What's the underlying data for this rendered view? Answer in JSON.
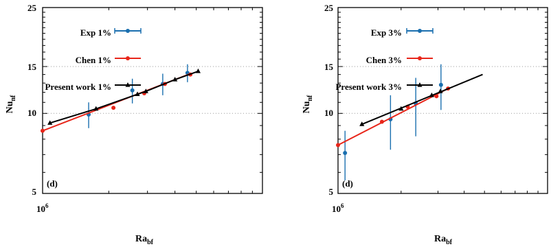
{
  "colors": {
    "exp": "#1a6faf",
    "chen": "#e8261a",
    "present": "#000000"
  },
  "chart_data": [
    {
      "type": "line",
      "panel_label": "(d)",
      "xlabel": "Ra_bf",
      "ylabel": "Nu_nf",
      "log_x": true,
      "log_y": true,
      "xlim": [
        1000000,
        10000000
      ],
      "ylim": [
        5,
        25
      ],
      "yticks": [
        5,
        10,
        15,
        25
      ],
      "xticks": [
        1000000
      ],
      "xtick_labels": [
        "10^6"
      ],
      "grid": "horizontal dotted at y-ticks",
      "legend_position": "top-left",
      "series": [
        {
          "name": "Exp 1%",
          "style": "errorbar",
          "color_key": "exp",
          "points": [
            {
              "x": 1620000,
              "y": 9.9,
              "err": 1.1
            },
            {
              "x": 2560000,
              "y": 12.2,
              "err": 1.3
            },
            {
              "x": 3520000,
              "y": 12.9,
              "err": 1.2
            },
            {
              "x": 4560000,
              "y": 14.2,
              "err": 1.1
            }
          ]
        },
        {
          "name": "Chen  1%",
          "style": "line-marker",
          "color_key": "chen",
          "points": [
            {
              "x": 1000000,
              "y": 8.6
            },
            {
              "x": 2100000,
              "y": 10.5
            },
            {
              "x": 2900000,
              "y": 11.9
            },
            {
              "x": 3600000,
              "y": 12.9
            },
            {
              "x": 4700000,
              "y": 14.0
            }
          ],
          "line_points": [
            {
              "x": 1000000,
              "y": 8.6
            },
            {
              "x": 4700000,
              "y": 14.1
            }
          ]
        },
        {
          "name": "Present work 1%",
          "style": "line-marker",
          "color_key": "present",
          "points": [
            {
              "x": 1080000,
              "y": 9.2
            },
            {
              "x": 1750000,
              "y": 10.4
            },
            {
              "x": 2700000,
              "y": 11.8
            },
            {
              "x": 2950000,
              "y": 12.1
            },
            {
              "x": 4000000,
              "y": 13.4
            },
            {
              "x": 5100000,
              "y": 14.4
            }
          ]
        }
      ]
    },
    {
      "type": "line",
      "panel_label": "(d)",
      "xlabel": "Ra_bf",
      "ylabel": "Nu_nf",
      "log_x": true,
      "log_y": true,
      "xlim": [
        1000000,
        10000000
      ],
      "ylim": [
        5,
        25
      ],
      "yticks": [
        5,
        10,
        15,
        25
      ],
      "xticks": [
        1000000
      ],
      "xtick_labels": [
        "10^6"
      ],
      "grid": "horizontal dotted at y-ticks",
      "legend_position": "top-left",
      "series": [
        {
          "name": "Exp 3%",
          "style": "errorbar",
          "color_key": "exp",
          "points": [
            {
              "x": 1080000,
              "y": 7.1,
              "err": 1.5
            },
            {
              "x": 1780000,
              "y": 9.5,
              "err": 2.2
            },
            {
              "x": 2350000,
              "y": 10.9,
              "err": 2.7
            },
            {
              "x": 3100000,
              "y": 12.8,
              "err": 2.5
            }
          ]
        },
        {
          "name": "Chen  3%",
          "style": "line-marker",
          "color_key": "chen",
          "points": [
            {
              "x": 1000000,
              "y": 7.6
            },
            {
              "x": 1620000,
              "y": 9.3
            },
            {
              "x": 2150000,
              "y": 10.6
            },
            {
              "x": 2950000,
              "y": 11.6
            },
            {
              "x": 3350000,
              "y": 12.4
            }
          ],
          "line_points": [
            {
              "x": 1000000,
              "y": 7.6
            },
            {
              "x": 3350000,
              "y": 12.4
            }
          ]
        },
        {
          "name": "Present work 3%",
          "style": "line-marker",
          "color_key": "present",
          "points": [
            {
              "x": 1300000,
              "y": 9.1
            },
            {
              "x": 2000000,
              "y": 10.4
            },
            {
              "x": 2800000,
              "y": 11.7
            },
            {
              "x": 3080000,
              "y": 12.1
            }
          ],
          "line_points": [
            {
              "x": 1300000,
              "y": 9.1
            },
            {
              "x": 4900000,
              "y": 14.0
            }
          ]
        }
      ]
    }
  ],
  "ui": {
    "panel1": {
      "y_ticks": [
        "5",
        "10",
        "15",
        "25"
      ],
      "x_tick_base": "10",
      "x_tick_exp": "6",
      "xlabel_main": "Ra",
      "xlabel_sub": "bf",
      "ylabel_main": "Nu",
      "ylabel_sub": "nf",
      "legend": [
        "Exp 1%",
        "Chen  1%",
        "Present work 1%"
      ],
      "panel_label": "(d)"
    },
    "panel2": {
      "y_ticks": [
        "5",
        "10",
        "15",
        "25"
      ],
      "x_tick_base": "10",
      "x_tick_exp": "6",
      "xlabel_main": "Ra",
      "xlabel_sub": "bf",
      "ylabel_main": "Nu",
      "ylabel_sub": "nf",
      "legend": [
        "Exp 3%",
        "Chen  3%",
        "Present work 3%"
      ],
      "panel_label": "(d)"
    }
  }
}
